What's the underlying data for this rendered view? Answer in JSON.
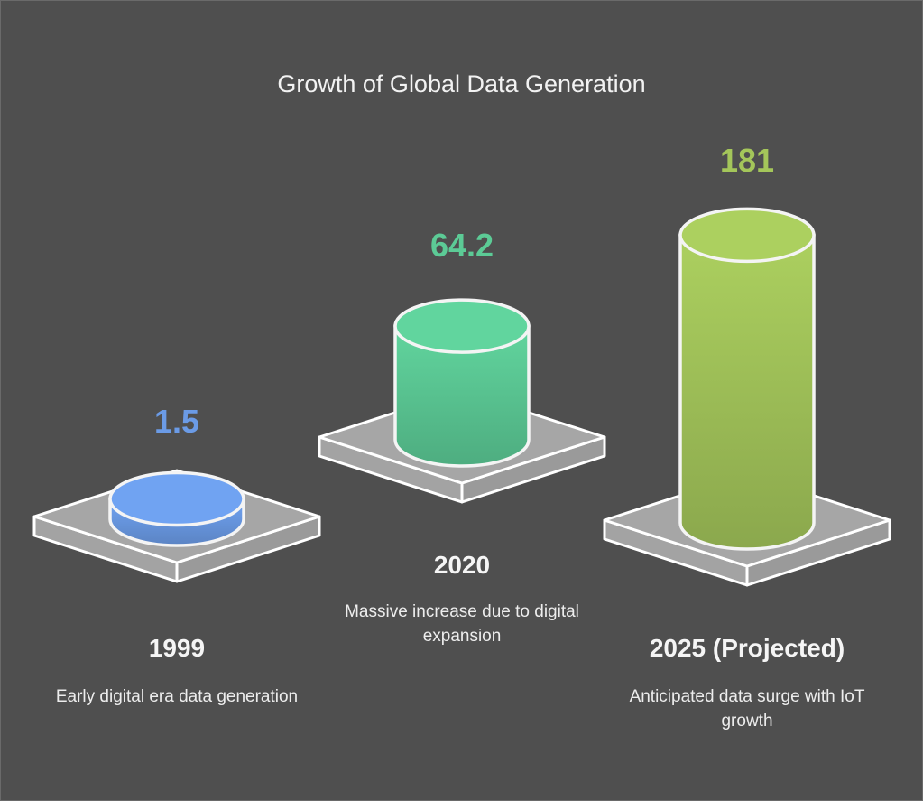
{
  "chart_data": {
    "type": "bar",
    "style": "3d-cylinder-infographic",
    "title": "Growth of Global Data Generation",
    "categories": [
      "1999",
      "2020",
      "2025 (Projected)"
    ],
    "values": [
      1.5,
      64.2,
      181
    ],
    "value_labels": [
      "1.5",
      "64.2",
      "181"
    ],
    "descriptions": [
      "Early digital era data generation",
      "Massive increase due to digital expansion",
      "Anticipated data surge with IoT growth"
    ],
    "colors": [
      "#6b9be6",
      "#5ccb96",
      "#a4c65a"
    ]
  }
}
